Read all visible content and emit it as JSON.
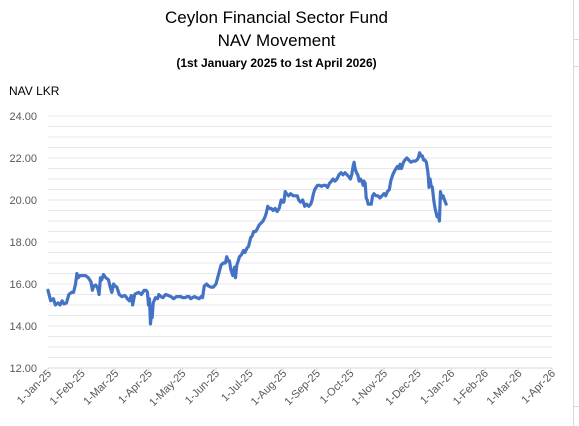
{
  "chart_data": {
    "type": "line",
    "title": "Ceylon Financial Sector Fund",
    "subtitle": "NAV Movement",
    "subtitle2": "(1st January 2025 to 1st April 2026)",
    "ylabel": "NAV LKR",
    "xlabel": "",
    "ylim": [
      12,
      24
    ],
    "yticks": [
      "12.00",
      "14.00",
      "16.00",
      "18.00",
      "20.00",
      "22.00",
      "24.00"
    ],
    "x_categories": [
      "1-Jan-25",
      "1-Feb-25",
      "1-Mar-25",
      "1-Apr-25",
      "1-May-25",
      "1-Jun-25",
      "1-Jul-25",
      "1-Aug-25",
      "1-Sep-25",
      "1-Oct-25",
      "1-Nov-25",
      "1-Dec-25",
      "1-Jan-26",
      "1-Feb-26",
      "1-Mar-26",
      "1-Apr-26"
    ],
    "grid": "horizontal",
    "line_color": "#4472c4",
    "series": [
      {
        "values": [
          [
            0,
            15.7
          ],
          [
            0.08,
            15.2
          ],
          [
            0.16,
            15.3
          ],
          [
            0.22,
            15.0
          ],
          [
            0.3,
            15.1
          ],
          [
            0.36,
            15.0
          ],
          [
            0.42,
            15.2
          ],
          [
            0.48,
            15.05
          ],
          [
            0.55,
            15.1
          ],
          [
            0.62,
            15.5
          ],
          [
            0.7,
            15.6
          ],
          [
            0.76,
            15.6
          ],
          [
            0.82,
            16.0
          ],
          [
            0.86,
            16.5
          ],
          [
            0.9,
            16.3
          ],
          [
            0.95,
            16.4
          ],
          [
            1.05,
            16.4
          ],
          [
            1.12,
            16.4
          ],
          [
            1.2,
            16.3
          ],
          [
            1.28,
            16.1
          ],
          [
            1.32,
            15.7
          ],
          [
            1.36,
            15.9
          ],
          [
            1.42,
            15.95
          ],
          [
            1.48,
            15.8
          ],
          [
            1.52,
            15.5
          ],
          [
            1.56,
            16.3
          ],
          [
            1.6,
            16.2
          ],
          [
            1.65,
            16.45
          ],
          [
            1.72,
            16.3
          ],
          [
            1.8,
            16.2
          ],
          [
            1.86,
            15.8
          ],
          [
            1.9,
            15.6
          ],
          [
            1.95,
            16.0
          ],
          [
            2.0,
            15.9
          ],
          [
            2.05,
            15.85
          ],
          [
            2.12,
            15.5
          ],
          [
            2.2,
            15.4
          ],
          [
            2.28,
            15.45
          ],
          [
            2.32,
            15.4
          ],
          [
            2.36,
            15.3
          ],
          [
            2.42,
            15.2
          ],
          [
            2.48,
            15.45
          ],
          [
            2.52,
            15.0
          ],
          [
            2.58,
            15.5
          ],
          [
            2.62,
            15.55
          ],
          [
            2.7,
            15.6
          ],
          [
            2.78,
            15.5
          ],
          [
            2.86,
            15.7
          ],
          [
            2.92,
            15.7
          ],
          [
            2.96,
            15.6
          ],
          [
            2.99,
            15.0
          ],
          [
            3.02,
            15.3
          ],
          [
            3.05,
            14.1
          ],
          [
            3.08,
            14.6
          ],
          [
            3.1,
            14.4
          ],
          [
            3.13,
            15.1
          ],
          [
            3.2,
            15.35
          ],
          [
            3.26,
            15.3
          ],
          [
            3.3,
            15.5
          ],
          [
            3.36,
            15.4
          ],
          [
            3.42,
            15.35
          ],
          [
            3.5,
            15.5
          ],
          [
            3.58,
            15.45
          ],
          [
            3.66,
            15.4
          ],
          [
            3.74,
            15.3
          ],
          [
            3.82,
            15.4
          ],
          [
            3.9,
            15.4
          ],
          [
            3.96,
            15.4
          ],
          [
            4.0,
            15.35
          ],
          [
            4.08,
            15.35
          ],
          [
            4.14,
            15.4
          ],
          [
            4.2,
            15.4
          ],
          [
            4.25,
            15.3
          ],
          [
            4.3,
            15.35
          ],
          [
            4.36,
            15.4
          ],
          [
            4.42,
            15.35
          ],
          [
            4.5,
            15.3
          ],
          [
            4.56,
            15.4
          ],
          [
            4.6,
            15.35
          ],
          [
            4.65,
            15.9
          ],
          [
            4.72,
            16.0
          ],
          [
            4.78,
            15.9
          ],
          [
            4.85,
            15.85
          ],
          [
            4.92,
            15.85
          ],
          [
            5.0,
            16.0
          ],
          [
            5.05,
            16.3
          ],
          [
            5.1,
            16.6
          ],
          [
            5.15,
            16.9
          ],
          [
            5.22,
            17.0
          ],
          [
            5.28,
            17.0
          ],
          [
            5.32,
            17.3
          ],
          [
            5.36,
            17.1
          ],
          [
            5.4,
            17.1
          ],
          [
            5.44,
            16.7
          ],
          [
            5.5,
            16.4
          ],
          [
            5.55,
            16.8
          ],
          [
            5.58,
            16.3
          ],
          [
            5.62,
            16.9
          ],
          [
            5.7,
            17.3
          ],
          [
            5.76,
            17.4
          ],
          [
            5.82,
            17.6
          ],
          [
            5.86,
            17.5
          ],
          [
            5.92,
            17.7
          ],
          [
            5.97,
            17.8
          ],
          [
            6.03,
            18.2
          ],
          [
            6.08,
            18.3
          ],
          [
            6.12,
            18.5
          ],
          [
            6.18,
            18.5
          ],
          [
            6.22,
            18.6
          ],
          [
            6.28,
            18.8
          ],
          [
            6.34,
            18.9
          ],
          [
            6.4,
            19.0
          ],
          [
            6.46,
            19.2
          ],
          [
            6.5,
            19.4
          ],
          [
            6.54,
            19.7
          ],
          [
            6.58,
            19.6
          ],
          [
            6.64,
            19.6
          ],
          [
            6.7,
            19.5
          ],
          [
            6.76,
            19.6
          ],
          [
            6.82,
            19.45
          ],
          [
            6.88,
            19.6
          ],
          [
            6.94,
            20.0
          ],
          [
            6.98,
            19.9
          ],
          [
            7.02,
            19.9
          ],
          [
            7.06,
            20.4
          ],
          [
            7.1,
            20.3
          ],
          [
            7.16,
            20.2
          ],
          [
            7.22,
            20.3
          ],
          [
            7.3,
            20.2
          ],
          [
            7.36,
            20.2
          ],
          [
            7.42,
            20.2
          ],
          [
            7.46,
            20.0
          ],
          [
            7.52,
            19.9
          ],
          [
            7.58,
            20.0
          ],
          [
            7.64,
            19.7
          ],
          [
            7.7,
            19.8
          ],
          [
            7.76,
            19.7
          ],
          [
            7.82,
            19.8
          ],
          [
            7.86,
            20.0
          ],
          [
            7.9,
            20.3
          ],
          [
            7.94,
            20.5
          ],
          [
            7.98,
            20.6
          ],
          [
            8.02,
            20.7
          ],
          [
            8.08,
            20.7
          ],
          [
            8.14,
            20.65
          ],
          [
            8.2,
            20.7
          ],
          [
            8.26,
            20.7
          ],
          [
            8.32,
            20.6
          ],
          [
            8.38,
            20.8
          ],
          [
            8.44,
            20.9
          ],
          [
            8.48,
            21.0
          ],
          [
            8.54,
            20.9
          ],
          [
            8.6,
            21.0
          ],
          [
            8.66,
            21.2
          ],
          [
            8.72,
            21.3
          ],
          [
            8.78,
            21.2
          ],
          [
            8.84,
            21.3
          ],
          [
            8.9,
            21.2
          ],
          [
            8.96,
            21.1
          ],
          [
            9.0,
            21.0
          ],
          [
            9.04,
            21.2
          ],
          [
            9.08,
            21.6
          ],
          [
            9.11,
            21.8
          ],
          [
            9.14,
            21.5
          ],
          [
            9.18,
            21.3
          ],
          [
            9.22,
            21.2
          ],
          [
            9.26,
            20.9
          ],
          [
            9.3,
            21.0
          ],
          [
            9.34,
            20.9
          ],
          [
            9.38,
            20.7
          ],
          [
            9.4,
            20.9
          ],
          [
            9.44,
            20.8
          ],
          [
            9.47,
            20.1
          ],
          [
            9.5,
            20.0
          ],
          [
            9.53,
            19.8
          ],
          [
            9.57,
            19.8
          ],
          [
            9.62,
            19.8
          ],
          [
            9.66,
            20.2
          ],
          [
            9.7,
            20.3
          ],
          [
            9.76,
            20.2
          ],
          [
            9.82,
            20.2
          ],
          [
            9.88,
            20.1
          ],
          [
            9.94,
            20.2
          ],
          [
            10.0,
            20.3
          ],
          [
            10.05,
            20.2
          ],
          [
            10.1,
            20.4
          ],
          [
            10.16,
            20.5
          ],
          [
            10.2,
            20.9
          ],
          [
            10.26,
            21.2
          ],
          [
            10.32,
            21.4
          ],
          [
            10.36,
            21.5
          ],
          [
            10.4,
            21.6
          ],
          [
            10.44,
            21.5
          ],
          [
            10.48,
            21.7
          ],
          [
            10.52,
            21.5
          ],
          [
            10.58,
            21.8
          ],
          [
            10.62,
            21.9
          ],
          [
            10.68,
            22.0
          ],
          [
            10.74,
            21.9
          ],
          [
            10.8,
            21.8
          ],
          [
            10.86,
            21.85
          ],
          [
            10.92,
            21.85
          ],
          [
            10.98,
            21.9
          ],
          [
            11.02,
            22.0
          ],
          [
            11.06,
            22.25
          ],
          [
            11.1,
            22.1
          ],
          [
            11.14,
            22.1
          ],
          [
            11.18,
            21.9
          ],
          [
            11.22,
            21.9
          ],
          [
            11.26,
            21.8
          ],
          [
            11.3,
            21.4
          ],
          [
            11.32,
            21.1
          ],
          [
            11.34,
            20.6
          ],
          [
            11.37,
            21.0
          ],
          [
            11.4,
            20.7
          ],
          [
            11.44,
            20.6
          ],
          [
            11.48,
            20.0
          ],
          [
            11.52,
            19.6
          ],
          [
            11.55,
            19.4
          ],
          [
            11.58,
            19.2
          ],
          [
            11.62,
            19.3
          ],
          [
            11.65,
            19.0
          ],
          [
            11.68,
            20.4
          ],
          [
            11.72,
            20.1
          ],
          [
            11.76,
            20.2
          ],
          [
            11.8,
            20.0
          ],
          [
            11.85,
            19.8
          ]
        ]
      }
    ]
  }
}
